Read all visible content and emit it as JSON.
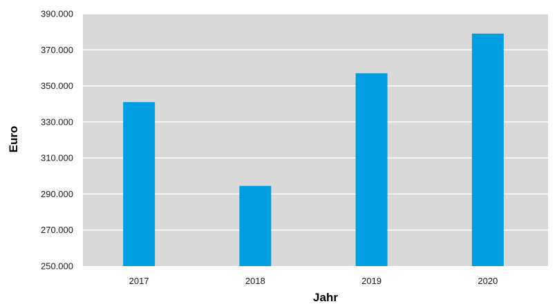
{
  "chart_data": {
    "type": "bar",
    "title": "",
    "xlabel": "Jahr",
    "ylabel": "Euro",
    "categories": [
      "2017",
      "2018",
      "2019",
      "2020"
    ],
    "values": [
      341000,
      294500,
      357000,
      379000
    ],
    "ylim": [
      250000,
      390000
    ],
    "yticks": [
      250000,
      270000,
      290000,
      310000,
      330000,
      350000,
      370000,
      390000
    ],
    "ytick_labels": [
      "250.000",
      "270.000",
      "290.000",
      "310.000",
      "330.000",
      "350.000",
      "370.000",
      "390.000"
    ],
    "grid": true,
    "legend": "none",
    "colors": {
      "bar": "#009ee0",
      "plot_background": "#d9d9d9",
      "grid": "#ffffff"
    }
  }
}
